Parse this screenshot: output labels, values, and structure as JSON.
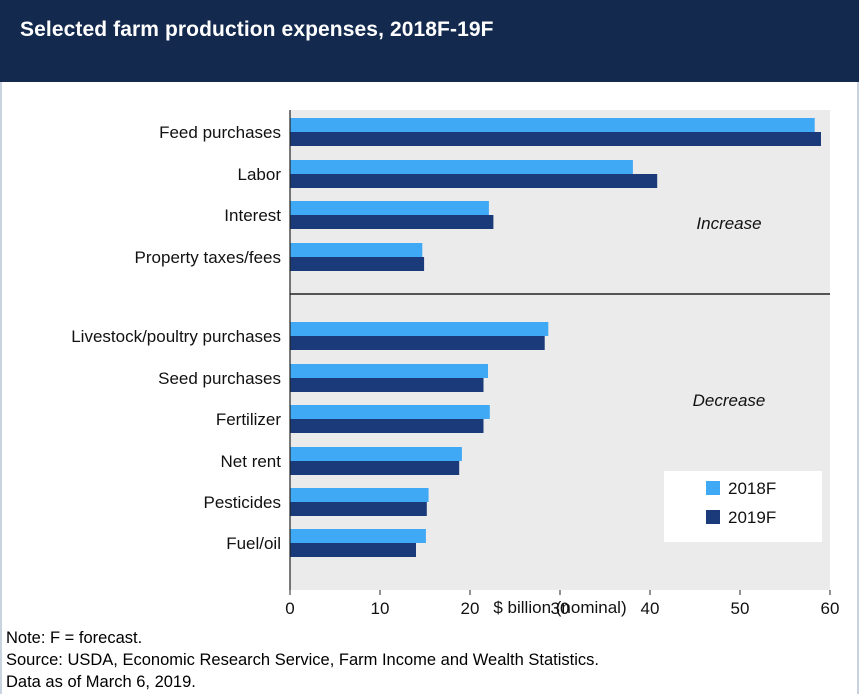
{
  "header": {
    "title": "Selected farm production expenses, 2018F-19F"
  },
  "chart_data": {
    "type": "bar",
    "orientation": "horizontal",
    "title": "Selected farm production expenses, 2018F-19F",
    "xlabel": "$ billion (nominal)",
    "ylabel": "",
    "xlim": [
      0,
      60
    ],
    "xticks": [
      0,
      10,
      20,
      30,
      40,
      50,
      60
    ],
    "grid": false,
    "legend_position": "bottom-right",
    "groups": [
      {
        "label": "Increase",
        "categories": [
          "Feed purchases",
          "Labor",
          "Interest",
          "Property taxes/fees"
        ]
      },
      {
        "label": "Decrease",
        "categories": [
          "Livestock/poultry purchases",
          "Seed purchases",
          "Fertilizer",
          "Net rent",
          "Pesticides",
          "Fuel/oil"
        ]
      }
    ],
    "categories": [
      "Feed purchases",
      "Labor",
      "Interest",
      "Property taxes/fees",
      "Livestock/poultry purchases",
      "Seed purchases",
      "Fertilizer",
      "Net rent",
      "Pesticides",
      "Fuel/oil"
    ],
    "series": [
      {
        "name": "2018F",
        "color": "#3fa9f5",
        "values": [
          58.3,
          38.1,
          22.1,
          14.7,
          28.7,
          22.0,
          22.2,
          19.1,
          15.4,
          15.1
        ]
      },
      {
        "name": "2019F",
        "color": "#1a3a7a",
        "values": [
          59.0,
          40.8,
          22.6,
          14.9,
          28.3,
          21.5,
          21.5,
          18.8,
          15.2,
          14.0
        ]
      }
    ]
  },
  "notes": {
    "line1": "Note: F = forecast.",
    "line2": "Source: USDA, Economic Research Service, Farm Income and Wealth Statistics.",
    "line3": "Data as of March 6, 2019."
  }
}
